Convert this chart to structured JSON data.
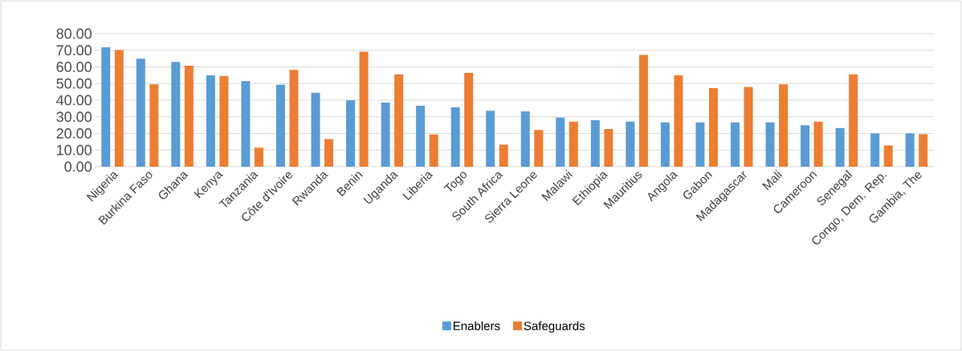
{
  "chart_data": {
    "type": "bar",
    "categories": [
      "Nigeria",
      "Burkina Faso",
      "Ghana",
      "Kenya",
      "Tanzania",
      "Côte d'Ivoire",
      "Rwanda",
      "Benin",
      "Uganda",
      "Liberia",
      "Togo",
      "South Africa",
      "Sierra Leone",
      "Malawi",
      "Ethiopia",
      "Mauritius",
      "Angola",
      "Gabon",
      "Madagascar",
      "Mali",
      "Cameroon",
      "Senegal",
      "Congo, Dem. Rep.",
      "Gambia, The"
    ],
    "series": [
      {
        "name": "Enablers",
        "color": "#5b9bd5",
        "values": [
          71.8,
          65.0,
          63.0,
          55.0,
          51.5,
          49.3,
          44.4,
          40.0,
          38.6,
          36.6,
          35.7,
          33.6,
          33.3,
          29.5,
          27.9,
          27.1,
          26.6,
          26.6,
          26.6,
          26.6,
          24.9,
          23.2,
          20.0,
          20.0
        ]
      },
      {
        "name": "Safeguards",
        "color": "#ed7d31",
        "values": [
          70.2,
          49.5,
          60.7,
          54.4,
          11.4,
          58.2,
          16.6,
          69.1,
          55.5,
          19.4,
          56.4,
          13.2,
          22.0,
          27.1,
          22.7,
          67.2,
          54.9,
          47.2,
          48.0,
          49.5,
          27.1,
          55.6,
          12.8,
          19.5
        ]
      }
    ],
    "ylim": [
      0,
      80
    ],
    "yticks": [
      {
        "value": 0,
        "label": "0.00"
      },
      {
        "value": 10,
        "label": "10.00"
      },
      {
        "value": 20,
        "label": "20.00"
      },
      {
        "value": 30,
        "label": "30.00"
      },
      {
        "value": 40,
        "label": "40.00"
      },
      {
        "value": 50,
        "label": "50.00"
      },
      {
        "value": 60,
        "label": "60.00"
      },
      {
        "value": 70,
        "label": "70.00"
      },
      {
        "value": 80,
        "label": "80.00"
      }
    ],
    "grid": "y",
    "legend": "bottom"
  }
}
